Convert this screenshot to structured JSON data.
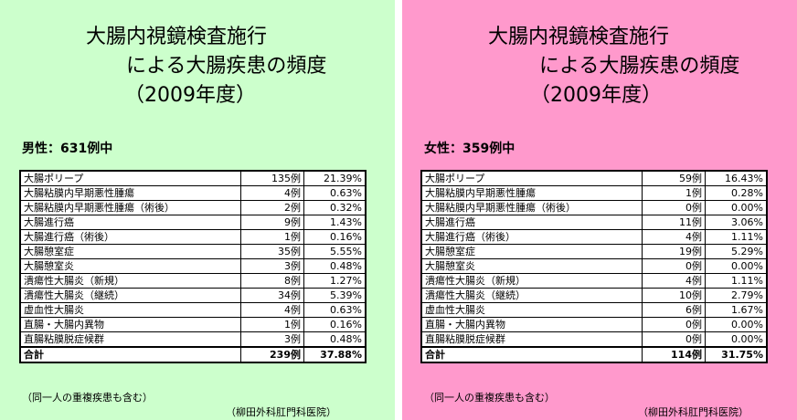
{
  "panels": [
    {
      "title_line1": "大腸内視鏡検査施行",
      "title_line2": "による大腸疾患の頻度",
      "title_line3": "（2009年度）",
      "subtitle": "男性：631例中",
      "rows": [
        {
          "name": "大腸ポリープ",
          "count": "135例",
          "pct": "21.39%"
        },
        {
          "name": "大腸粘膜内早期悪性腫瘍",
          "count": "4例",
          "pct": "0.63%"
        },
        {
          "name": "大腸粘膜内早期悪性腫瘍（術後）",
          "count": "2例",
          "pct": "0.32%"
        },
        {
          "name": "大腸進行癌",
          "count": "9例",
          "pct": "1.43%"
        },
        {
          "name": "大腸進行癌（術後）",
          "count": "1例",
          "pct": "0.16%"
        },
        {
          "name": "大腸憩室症",
          "count": "35例",
          "pct": "5.55%"
        },
        {
          "name": "大腸憩室炎",
          "count": "3例",
          "pct": "0.48%"
        },
        {
          "name": "潰瘍性大腸炎（新規）",
          "count": "8例",
          "pct": "1.27%"
        },
        {
          "name": "潰瘍性大腸炎（継続）",
          "count": "34例",
          "pct": "5.39%"
        },
        {
          "name": "虚血性大腸炎",
          "count": "4例",
          "pct": "0.63%"
        },
        {
          "name": "直腸・大腸内異物",
          "count": "1例",
          "pct": "0.16%"
        },
        {
          "name": "直腸粘膜脱症候群",
          "count": "3例",
          "pct": "0.48%"
        }
      ],
      "total": {
        "name": "合計",
        "count": "239例",
        "pct": "37.88%"
      },
      "note": "（同一人の重複疾患も含む）",
      "clinic": "（柳田外科肛門科医院）"
    },
    {
      "title_line1": "大腸内視鏡検査施行",
      "title_line2": "による大腸疾患の頻度",
      "title_line3": "（2009年度）",
      "subtitle": "女性：359例中",
      "rows": [
        {
          "name": "大腸ポリープ",
          "count": "59例",
          "pct": "16.43%"
        },
        {
          "name": "大腸粘膜内早期悪性腫瘍",
          "count": "1例",
          "pct": "0.28%"
        },
        {
          "name": "大腸粘膜内早期悪性腫瘍（術後）",
          "count": "0例",
          "pct": "0.00%"
        },
        {
          "name": "大腸進行癌",
          "count": "11例",
          "pct": "3.06%"
        },
        {
          "name": "大腸進行癌（術後）",
          "count": "4例",
          "pct": "1.11%"
        },
        {
          "name": "大腸憩室症",
          "count": "19例",
          "pct": "5.29%"
        },
        {
          "name": "大腸憩室炎",
          "count": "0例",
          "pct": "0.00%"
        },
        {
          "name": "潰瘍性大腸炎（新規）",
          "count": "4例",
          "pct": "1.11%"
        },
        {
          "name": "潰瘍性大腸炎（継続）",
          "count": "10例",
          "pct": "2.79%"
        },
        {
          "name": "虚血性大腸炎",
          "count": "6例",
          "pct": "1.67%"
        },
        {
          "name": "直腸・大腸内異物",
          "count": "0例",
          "pct": "0.00%"
        },
        {
          "name": "直腸粘膜脱症候群",
          "count": "0例",
          "pct": "0.00%"
        }
      ],
      "total": {
        "name": "合計",
        "count": "114例",
        "pct": "31.75%"
      },
      "note": "（同一人の重複疾患も含む）",
      "clinic": "（柳田外科肛門科医院）"
    }
  ]
}
